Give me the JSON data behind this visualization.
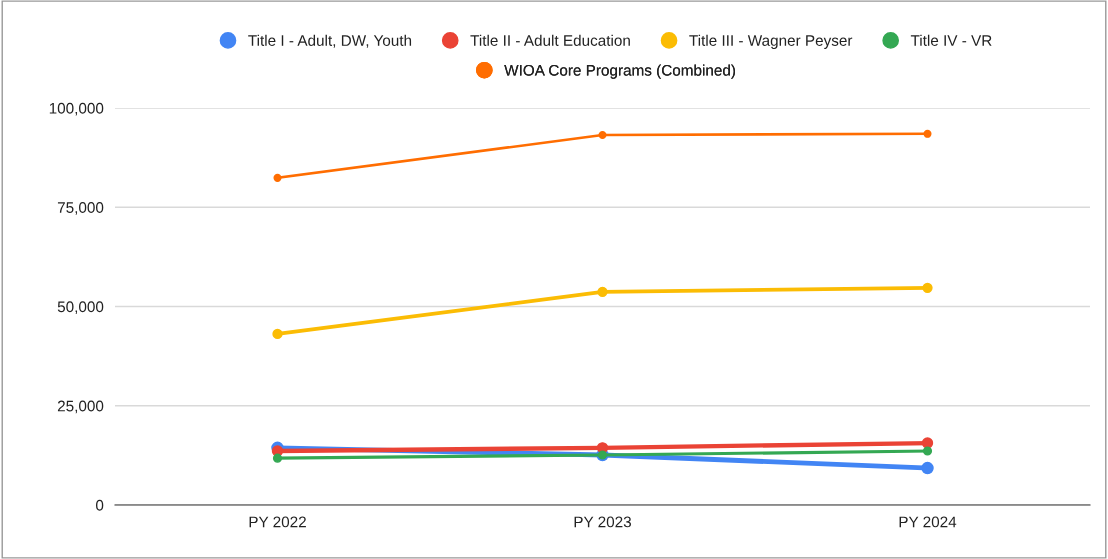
{
  "chart_data": {
    "type": "line",
    "categories": [
      "PY 2022",
      "PY 2023",
      "PY 2024"
    ],
    "series": [
      {
        "name": "Title I - Adult, DW, Youth",
        "color": "#4285f4",
        "values": [
          14400,
          12600,
          9300
        ]
      },
      {
        "name": "Title II - Adult Education",
        "color": "#ea4335",
        "values": [
          13600,
          14400,
          15600
        ]
      },
      {
        "name": "Title III - Wagner Peyser",
        "color": "#fbbc04",
        "values": [
          43100,
          53700,
          54700
        ]
      },
      {
        "name": "Title IV - VR",
        "color": "#34a853",
        "values": [
          11800,
          12600,
          13600
        ]
      },
      {
        "name": "WIOA Core Programs (Combined)",
        "color": "#ff6d01",
        "values": [
          82400,
          93200,
          93500
        ]
      }
    ],
    "ylim": [
      0,
      100000
    ],
    "yticks": [
      {
        "value": 0,
        "label": "0"
      },
      {
        "value": 25000,
        "label": "25,000"
      },
      {
        "value": 50000,
        "label": "50,000"
      },
      {
        "value": 75000,
        "label": "75,000"
      },
      {
        "value": 100000,
        "label": "100,000"
      }
    ],
    "grid": "y",
    "legend": "top",
    "marker": "circle",
    "line_style": "solid"
  }
}
